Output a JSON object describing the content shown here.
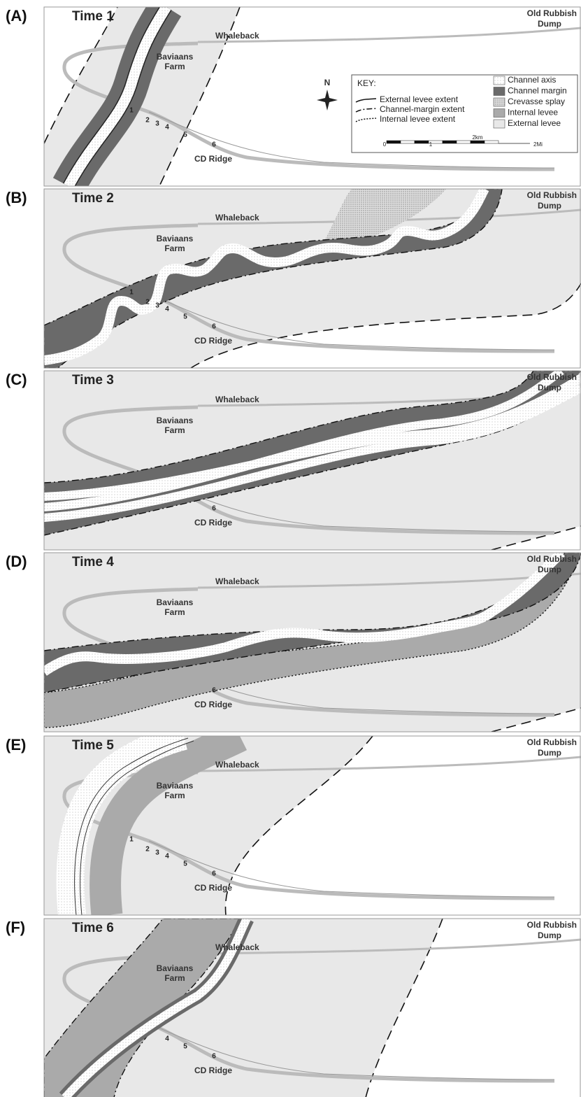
{
  "panels": [
    {
      "letter": "(A)",
      "time": "Time 1",
      "whaleback": "Whaleback",
      "farm": [
        "Baviaans",
        "Farm"
      ],
      "dump": [
        "Old Rubbish",
        "Dump"
      ],
      "ridge": "CD Ridge",
      "wells": [
        "1",
        "2",
        "3",
        "4",
        "5",
        "6"
      ]
    },
    {
      "letter": "(B)",
      "time": "Time 2",
      "whaleback": "Whaleback",
      "farm": [
        "Baviaans",
        "Farm"
      ],
      "dump": [
        "Old Rubbish",
        "Dump"
      ],
      "ridge": "CD Ridge",
      "wells": [
        "1",
        "2",
        "3",
        "4",
        "5",
        "6"
      ]
    },
    {
      "letter": "(C)",
      "time": "Time 3",
      "whaleback": "Whaleback",
      "farm": [
        "Baviaans",
        "Farm"
      ],
      "dump": [
        "Old Rubbish",
        "Dump"
      ],
      "ridge": "CD Ridge",
      "wells": [
        "6"
      ]
    },
    {
      "letter": "(D)",
      "time": "Time 4",
      "whaleback": "Whaleback",
      "farm": [
        "Baviaans",
        "Farm"
      ],
      "dump": [
        "Old Rubbish",
        "Dump"
      ],
      "ridge": "CD Ridge",
      "wells": [
        "6"
      ]
    },
    {
      "letter": "(E)",
      "time": "Time 5",
      "whaleback": "Whaleback",
      "farm": [
        "Baviaans",
        "Farm"
      ],
      "dump": [
        "Old Rubbish",
        "Dump"
      ],
      "ridge": "CD Ridge",
      "wells": [
        "1",
        "2",
        "3",
        "4",
        "5",
        "6"
      ]
    },
    {
      "letter": "(F)",
      "time": "Time 6",
      "whaleback": "Whaleback",
      "farm": [
        "Baviaans",
        "Farm"
      ],
      "dump": [
        "Old Rubbish",
        "Dump"
      ],
      "ridge": "CD Ridge",
      "wells": [
        "4",
        "5",
        "6"
      ]
    }
  ],
  "key": {
    "title": "KEY:",
    "lines": [
      "External levee extent",
      "Channel-margin extent",
      "Internal levee extent"
    ],
    "fills": [
      "Channel axis",
      "Channel margin",
      "Crevasse splay",
      "Internal levee",
      "External levee"
    ],
    "scale": [
      "0",
      "1",
      "2km",
      "2Mi"
    ]
  },
  "compass": "N"
}
